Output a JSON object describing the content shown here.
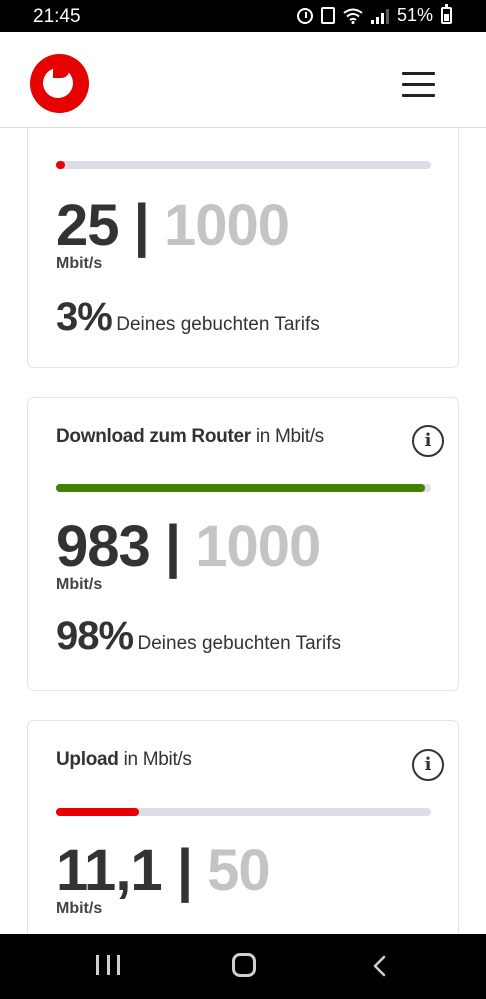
{
  "status_bar": {
    "time": "21:45",
    "battery": "51%"
  },
  "header": {
    "logo": "vodafone-logo",
    "menu_icon": "hamburger-menu-icon"
  },
  "cards": [
    {
      "title": "",
      "unit_suffix": "",
      "value": "25",
      "separator": "|",
      "total": "1000",
      "unit": "Mbit/s",
      "percent": "3%",
      "percent_text": "Deines gebuchten Tarifs",
      "fill_fraction": 0.025,
      "bar_color": "#e60000"
    },
    {
      "title": "Download zum Router",
      "unit_suffix": " in Mbit/s",
      "value": "983",
      "separator": "|",
      "total": "1000",
      "unit": "Mbit/s",
      "percent": "98%",
      "percent_text": "Deines gebuchten Tarifs",
      "fill_fraction": 0.983,
      "bar_color": "#428000"
    },
    {
      "title": "Upload",
      "unit_suffix": " in Mbit/s",
      "value": "11,1",
      "separator": "|",
      "total": "50",
      "unit": "Mbit/s",
      "percent": "",
      "percent_text": "",
      "fill_fraction": 0.222,
      "bar_color": "#e60000"
    }
  ],
  "nav_bar": {
    "recents": "recents-icon",
    "home": "home-icon",
    "back": "back-icon"
  }
}
